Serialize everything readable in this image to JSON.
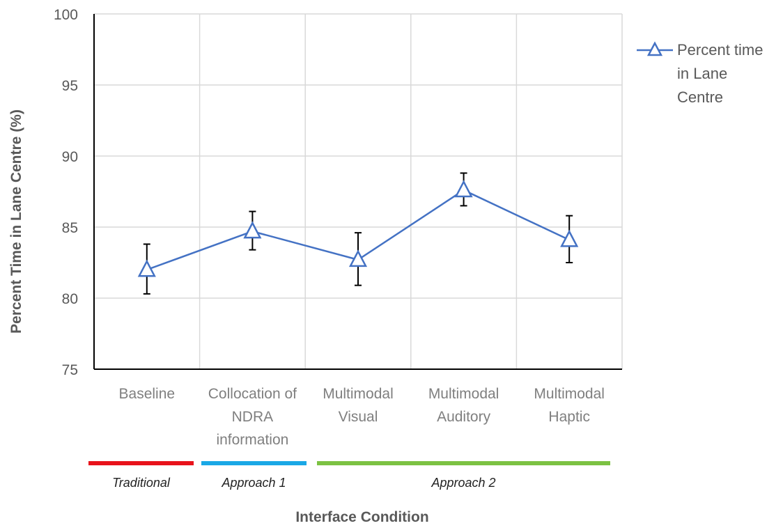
{
  "chart_data": {
    "type": "line",
    "ylabel": "Percent Time in Lane Centre (%)",
    "xlabel": "Interface Condition",
    "ylim": [
      75,
      100
    ],
    "yticks": [
      "75",
      "80",
      "85",
      "90",
      "95",
      "100"
    ],
    "grid": true,
    "legend_position": "right",
    "categories": [
      [
        "Baseline"
      ],
      [
        "Collocation of",
        "NDRA",
        "information"
      ],
      [
        "Multimodal",
        "Visual"
      ],
      [
        "Multimodal",
        "Auditory"
      ],
      [
        "Multimodal",
        "Haptic"
      ]
    ],
    "series": [
      {
        "name": [
          "Percent time",
          "in Lane",
          "Centre"
        ],
        "values": [
          82.0,
          84.7,
          82.7,
          87.6,
          84.1
        ],
        "err_low": [
          80.3,
          83.4,
          80.9,
          86.5,
          82.5
        ],
        "err_high": [
          83.8,
          86.1,
          84.6,
          88.8,
          85.8
        ],
        "color": "#4472c4",
        "marker": "triangle"
      }
    ],
    "groups": [
      {
        "label": "Traditional",
        "color": "#e8131b",
        "from": 0,
        "to": 0
      },
      {
        "label": "Approach 1",
        "color": "#1aa8e6",
        "from": 1,
        "to": 1
      },
      {
        "label": "Approach 2",
        "color": "#7cc243",
        "from": 2,
        "to": 4
      }
    ]
  }
}
